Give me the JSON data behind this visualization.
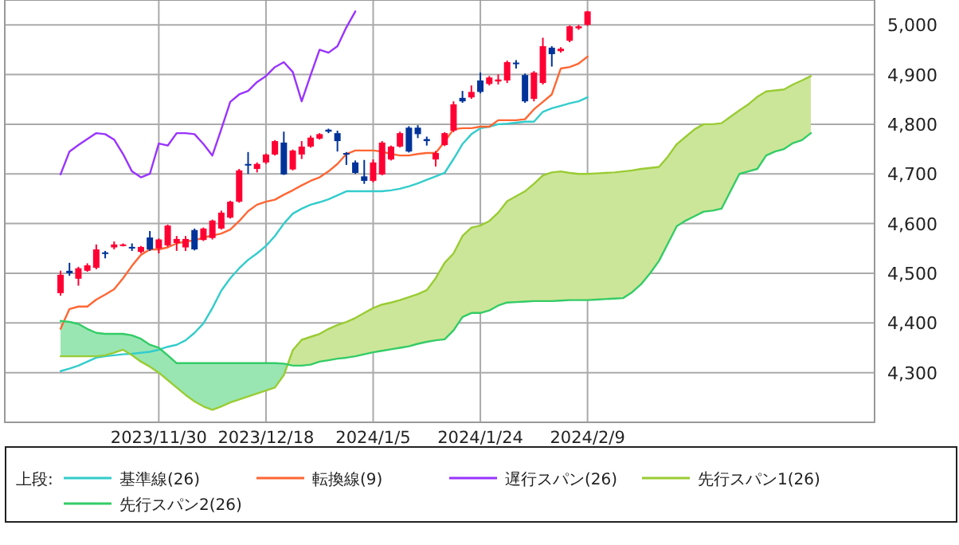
{
  "chart_data": {
    "type": "candlestick",
    "categories": [
      null,
      null,
      null,
      null,
      null,
      null,
      null,
      null,
      null,
      null,
      null,
      "2023/11/30",
      null,
      null,
      null,
      null,
      null,
      null,
      null,
      null,
      null,
      null,
      null,
      "2023/12/18",
      null,
      null,
      null,
      null,
      null,
      null,
      null,
      null,
      null,
      null,
      null,
      "2024/1/5",
      null,
      null,
      null,
      null,
      null,
      null,
      null,
      null,
      null,
      null,
      null,
      "2024/1/24",
      null,
      null,
      null,
      null,
      null,
      null,
      null,
      null,
      null,
      null,
      null,
      "2024/2/9",
      null,
      null,
      null,
      null,
      null,
      null,
      null,
      null,
      null,
      null,
      null,
      null,
      null,
      null,
      null,
      null,
      null,
      null,
      null,
      null,
      null,
      null,
      null,
      null,
      null
    ],
    "ohlc": [
      [
        4460,
        4505,
        4455,
        4497
      ],
      [
        4505,
        4521,
        4495,
        4500
      ],
      [
        4489,
        4513,
        4475,
        4510
      ],
      [
        4505,
        4520,
        4503,
        4516
      ],
      [
        4511,
        4558,
        4508,
        4548
      ],
      [
        4542,
        4545,
        4530,
        4539
      ],
      [
        4552,
        4564,
        4548,
        4558
      ],
      [
        4555,
        4560,
        4554,
        4558
      ],
      [
        4553,
        4560,
        4545,
        4550
      ],
      [
        4543,
        4555,
        4540,
        4553
      ],
      [
        4572,
        4585,
        4545,
        4548
      ],
      [
        4550,
        4570,
        4540,
        4568
      ],
      [
        4556,
        4598,
        4553,
        4596
      ],
      [
        4561,
        4575,
        4545,
        4569
      ],
      [
        4552,
        4575,
        4545,
        4569
      ],
      [
        4587,
        4590,
        4546,
        4548
      ],
      [
        4567,
        4592,
        4565,
        4590
      ],
      [
        4571,
        4608,
        4568,
        4606
      ],
      [
        4590,
        4626,
        4588,
        4622
      ],
      [
        4612,
        4646,
        4610,
        4644
      ],
      [
        4644,
        4710,
        4642,
        4707
      ],
      [
        4720,
        4744,
        4700,
        4718
      ],
      [
        4710,
        4723,
        4703,
        4720
      ],
      [
        4723,
        4741,
        4720,
        4739
      ],
      [
        4739,
        4768,
        4737,
        4766
      ],
      [
        4763,
        4785,
        4698,
        4699
      ],
      [
        4709,
        4749,
        4707,
        4747
      ],
      [
        4739,
        4766,
        4730,
        4755
      ],
      [
        4755,
        4777,
        4753,
        4773
      ],
      [
        4771,
        4782,
        4769,
        4780
      ],
      [
        4789,
        4791,
        4782,
        4785
      ],
      [
        4782,
        4787,
        4745,
        4766
      ],
      [
        4742,
        4744,
        4718,
        4739
      ],
      [
        4723,
        4727,
        4700,
        4702
      ],
      [
        4695,
        4728,
        4680,
        4686
      ],
      [
        4686,
        4729,
        4683,
        4723
      ],
      [
        4699,
        4766,
        4697,
        4763
      ],
      [
        4729,
        4757,
        4727,
        4755
      ],
      [
        4755,
        4785,
        4753,
        4782
      ],
      [
        4793,
        4796,
        4743,
        4745
      ],
      [
        4793,
        4798,
        4772,
        4780
      ],
      [
        4770,
        4775,
        4757,
        4766
      ],
      [
        4729,
        4746,
        4715,
        4742
      ],
      [
        4758,
        4784,
        4756,
        4782
      ],
      [
        4787,
        4846,
        4784,
        4840
      ],
      [
        4853,
        4867,
        4843,
        4846
      ],
      [
        4854,
        4878,
        4851,
        4865
      ],
      [
        4888,
        4904,
        4862,
        4865
      ],
      [
        4881,
        4897,
        4878,
        4894
      ],
      [
        4886,
        4900,
        4880,
        4890
      ],
      [
        4888,
        4928,
        4883,
        4925
      ],
      [
        4924,
        4929,
        4912,
        4921
      ],
      [
        4899,
        4902,
        4843,
        4846
      ],
      [
        4851,
        4907,
        4846,
        4904
      ],
      [
        4883,
        4974,
        4880,
        4957
      ],
      [
        4954,
        4957,
        4916,
        4941
      ],
      [
        4947,
        4955,
        4944,
        4952
      ],
      [
        4968,
        4999,
        4965,
        4997
      ],
      [
        4993,
        5000,
        4990,
        4997
      ],
      [
        5000,
        5028,
        4998,
        5027
      ],
      null,
      null,
      null,
      null,
      null,
      null,
      null,
      null,
      null,
      null,
      null,
      null,
      null,
      null,
      null,
      null,
      null,
      null,
      null,
      null,
      null,
      null,
      null,
      null,
      null
    ],
    "colors": [
      "#ff0033",
      "#003399",
      "#ff0033",
      "#ff0033",
      "#ff0033",
      "#003399",
      "#ff0033",
      "#ff0033",
      "#003399",
      "#ff0033",
      "#003399",
      "#ff0033",
      "#ff0033",
      "#ff0033",
      "#ff0033",
      "#003399",
      "#ff0033",
      "#ff0033",
      "#ff0033",
      "#ff0033",
      "#ff0033",
      "#003399",
      "#ff0033",
      "#ff0033",
      "#ff0033",
      "#003399",
      "#ff0033",
      "#ff0033",
      "#ff0033",
      "#ff0033",
      "#003399",
      "#003399",
      "#003399",
      "#003399",
      "#003399",
      "#ff0033",
      "#ff0033",
      "#ff0033",
      "#ff0033",
      "#003399",
      "#003399",
      "#003399",
      "#ff0033",
      "#ff0033",
      "#ff0033",
      "#003399",
      "#ff0033",
      "#003399",
      "#ff0033",
      "#ff0033",
      "#ff0033",
      "#003399",
      "#003399",
      "#ff0033",
      "#ff0033",
      "#003399",
      "#ff0033",
      "#ff0033",
      "#ff0033",
      "#ff0033",
      null,
      null,
      null,
      null,
      null,
      null,
      null,
      null,
      null,
      null,
      null,
      null,
      null,
      null,
      null,
      null,
      null,
      null,
      null,
      null,
      null,
      null,
      null,
      null,
      null
    ],
    "series": [
      {
        "name": "基準線(26)",
        "type": "line",
        "color": "#33cccc",
        "values": [
          4303,
          4308,
          4314,
          4322,
          4330,
          4333,
          4335,
          4337,
          4338,
          4340,
          4342,
          4346,
          4352,
          4356,
          4365,
          4380,
          4399,
          4430,
          4465,
          4490,
          4510,
          4527,
          4540,
          4555,
          4575,
          4600,
          4620,
          4630,
          4638,
          4643,
          4649,
          4657,
          4665,
          4665,
          4665,
          4665,
          4665,
          4667,
          4670,
          4675,
          4681,
          4688,
          4695,
          4702,
          4730,
          4760,
          4780,
          4792,
          4795,
          4800,
          4801,
          4803,
          4805,
          4805,
          4825,
          4832,
          4837,
          4842,
          4846,
          4854,
          null,
          null,
          null,
          null,
          null,
          null,
          null,
          null,
          null,
          null,
          null,
          null,
          null,
          null,
          null,
          null,
          null,
          null,
          null,
          null,
          null,
          null,
          null,
          null,
          null
        ]
      },
      {
        "name": "転換線(9)",
        "type": "line",
        "color": "#ff6633",
        "values": [
          4388,
          4428,
          4433,
          4433,
          4447,
          4457,
          4468,
          4490,
          4515,
          4537,
          4548,
          4548,
          4552,
          4560,
          4564,
          4566,
          4572,
          4576,
          4580,
          4588,
          4605,
          4625,
          4638,
          4644,
          4648,
          4658,
          4667,
          4677,
          4686,
          4693,
          4705,
          4720,
          4740,
          4747,
          4747,
          4747,
          4745,
          4740,
          4737,
          4737,
          4740,
          4742,
          4742,
          4765,
          4790,
          4792,
          4792,
          4795,
          4795,
          4808,
          4808,
          4808,
          4810,
          4830,
          4845,
          4860,
          4912,
          4915,
          4922,
          4936,
          null,
          null,
          null,
          null,
          null,
          null,
          null,
          null,
          null,
          null,
          null,
          null,
          null,
          null,
          null,
          null,
          null,
          null,
          null,
          null,
          null,
          null,
          null,
          null,
          null
        ]
      },
      {
        "name": "遅行スパン(26)",
        "type": "line",
        "color": "#9933ff",
        "values": [
          4699,
          4745,
          4758,
          4770,
          4782,
          4780,
          4769,
          4740,
          4705,
          4693,
          4700,
          4761,
          4757,
          4782,
          4782,
          4780,
          4760,
          4737,
          4790,
          4845,
          4860,
          4867,
          4885,
          4897,
          4915,
          4925,
          4905,
          4846,
          4899,
          4950,
          4944,
          4957,
          4995,
          5027,
          null,
          null,
          null,
          null,
          null,
          null,
          null,
          null,
          null,
          null,
          null,
          null,
          null,
          null,
          null,
          null,
          null,
          null,
          null,
          null,
          null,
          null,
          null,
          null,
          null,
          null,
          null,
          null,
          null,
          null,
          null,
          null,
          null,
          null,
          null,
          null,
          null,
          null,
          null,
          null,
          null,
          null,
          null,
          null,
          null,
          null,
          null,
          null,
          null,
          null,
          null
        ]
      },
      {
        "name": "先行スパン1(26)",
        "type": "line",
        "color": "#99cc33",
        "values": [
          4333,
          4333,
          4333,
          4333,
          4333,
          4335,
          4340,
          4346,
          4335,
          4322,
          4312,
          4300,
          4285,
          4270,
          4255,
          4242,
          4232,
          4225,
          4232,
          4240,
          4246,
          4252,
          4258,
          4264,
          4270,
          4295,
          4345,
          4366,
          4372,
          4378,
          4388,
          4396,
          4402,
          4410,
          4420,
          4430,
          4437,
          4441,
          4446,
          4452,
          4458,
          4466,
          4490,
          4521,
          4540,
          4575,
          4592,
          4596,
          4605,
          4622,
          4645,
          4655,
          4665,
          4680,
          4697,
          4703,
          4705,
          4702,
          4700,
          4700,
          4701,
          4702,
          4703,
          4705,
          4707,
          4710,
          4712,
          4714,
          4735,
          4760,
          4775,
          4790,
          4800,
          4800,
          4802,
          4815,
          4828,
          4840,
          4855,
          4866,
          4868,
          4870,
          4880,
          4888,
          4897
        ]
      },
      {
        "name": "先行スパン2(26)",
        "type": "line",
        "color": "#33cc66",
        "values": [
          4404,
          4402,
          4398,
          4388,
          4380,
          4378,
          4378,
          4378,
          4375,
          4368,
          4356,
          4350,
          4335,
          4319,
          4319,
          4319,
          4319,
          4319,
          4319,
          4319,
          4319,
          4319,
          4319,
          4319,
          4319,
          4318,
          4314,
          4314,
          4316,
          4322,
          4325,
          4328,
          4330,
          4333,
          4337,
          4341,
          4344,
          4347,
          4350,
          4353,
          4358,
          4362,
          4365,
          4367,
          4385,
          4412,
          4420,
          4420,
          4425,
          4435,
          4441,
          4442,
          4443,
          4444,
          4444,
          4444,
          4445,
          4446,
          4446,
          4446,
          4447,
          4448,
          4449,
          4450,
          4462,
          4478,
          4500,
          4525,
          4560,
          4595,
          4606,
          4615,
          4624,
          4626,
          4630,
          4665,
          4700,
          4705,
          4710,
          4737,
          4745,
          4750,
          4762,
          4768,
          4782
        ]
      }
    ],
    "ylim": [
      4200,
      5050
    ],
    "yticks": [
      {
        "value": 4300,
        "label": "4,300"
      },
      {
        "value": 4400,
        "label": "4,400"
      },
      {
        "value": 4500,
        "label": "4,500"
      },
      {
        "value": 4600,
        "label": "4,600"
      },
      {
        "value": 4700,
        "label": "4,700"
      },
      {
        "value": 4800,
        "label": "4,800"
      },
      {
        "value": 4900,
        "label": "4,900"
      },
      {
        "value": 5000,
        "label": "5,000"
      }
    ],
    "grid": true,
    "legend": "bottom",
    "legend_title": "上段:"
  }
}
